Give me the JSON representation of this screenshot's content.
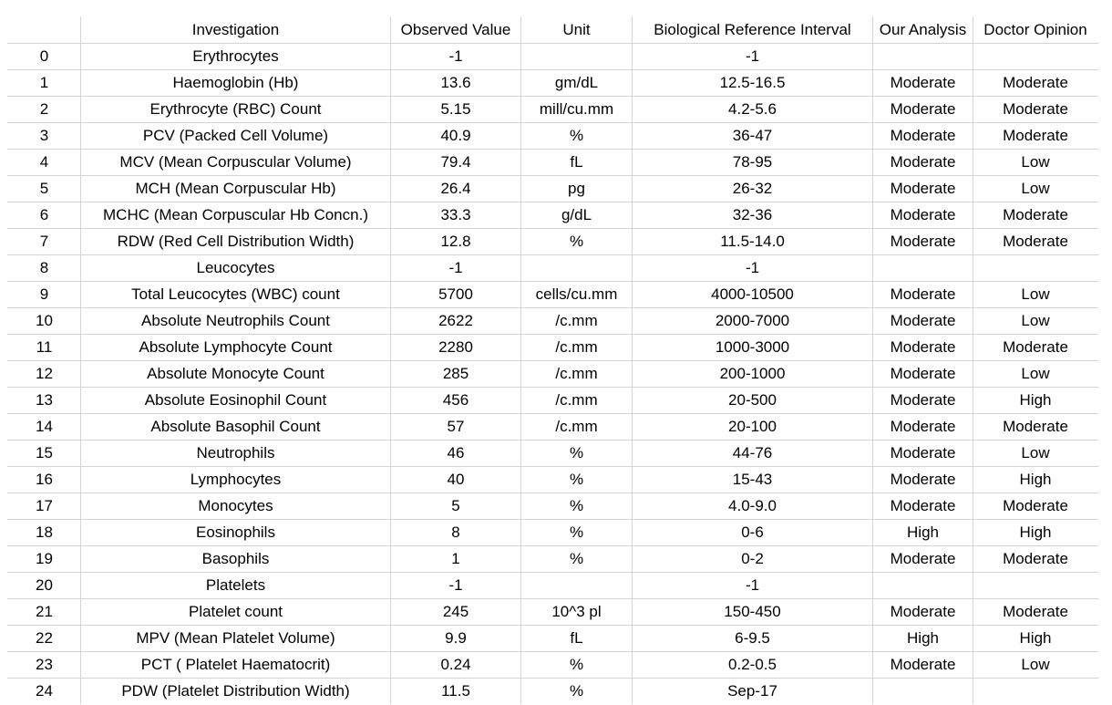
{
  "table": {
    "headers": [
      "",
      "Investigation",
      "Observed Value",
      "Unit",
      "Biological Reference Interval",
      "Our Analysis",
      "Doctor Opinion"
    ],
    "rows": [
      [
        "0",
        "Erythrocytes",
        "-1",
        "",
        "-1",
        "",
        ""
      ],
      [
        "1",
        "Haemoglobin (Hb)",
        "13.6",
        "gm/dL",
        "12.5-16.5",
        "Moderate",
        "Moderate"
      ],
      [
        "2",
        "Erythrocyte (RBC) Count",
        "5.15",
        "mill/cu.mm",
        "4.2-5.6",
        "Moderate",
        "Moderate"
      ],
      [
        "3",
        "PCV (Packed Cell Volume)",
        "40.9",
        "%",
        "36-47",
        "Moderate",
        "Moderate"
      ],
      [
        "4",
        "MCV (Mean Corpuscular Volume)",
        "79.4",
        "fL",
        "78-95",
        "Moderate",
        "Low"
      ],
      [
        "5",
        "MCH (Mean Corpuscular Hb)",
        "26.4",
        "pg",
        "26-32",
        "Moderate",
        "Low"
      ],
      [
        "6",
        "MCHC (Mean Corpuscular Hb Concn.)",
        "33.3",
        "g/dL",
        "32-36",
        "Moderate",
        "Moderate"
      ],
      [
        "7",
        "RDW (Red Cell Distribution Width)",
        "12.8",
        "%",
        "11.5-14.0",
        "Moderate",
        "Moderate"
      ],
      [
        "8",
        "Leucocytes",
        "-1",
        "",
        "-1",
        "",
        ""
      ],
      [
        "9",
        "Total Leucocytes (WBC) count",
        "5700",
        "cells/cu.mm",
        "4000-10500",
        "Moderate",
        "Low"
      ],
      [
        "10",
        "Absolute Neutrophils Count",
        "2622",
        "/c.mm",
        "2000-7000",
        "Moderate",
        "Low"
      ],
      [
        "11",
        "Absolute Lymphocyte Count",
        "2280",
        "/c.mm",
        "1000-3000",
        "Moderate",
        "Moderate"
      ],
      [
        "12",
        "Absolute Monocyte Count",
        "285",
        "/c.mm",
        "200-1000",
        "Moderate",
        "Low"
      ],
      [
        "13",
        "Absolute Eosinophil Count",
        "456",
        "/c.mm",
        "20-500",
        "Moderate",
        "High"
      ],
      [
        "14",
        "Absolute Basophil Count",
        "57",
        "/c.mm",
        "20-100",
        "Moderate",
        "Moderate"
      ],
      [
        "15",
        "Neutrophils",
        "46",
        "%",
        "44-76",
        "Moderate",
        "Low"
      ],
      [
        "16",
        "Lymphocytes",
        "40",
        "%",
        "15-43",
        "Moderate",
        "High"
      ],
      [
        "17",
        "Monocytes",
        "5",
        "%",
        "4.0-9.0",
        "Moderate",
        "Moderate"
      ],
      [
        "18",
        "Eosinophils",
        "8",
        "%",
        "0-6",
        "High",
        "High"
      ],
      [
        "19",
        "Basophils",
        "1",
        "%",
        "0-2",
        "Moderate",
        "Moderate"
      ],
      [
        "20",
        "Platelets",
        "-1",
        "",
        "-1",
        "",
        ""
      ],
      [
        "21",
        "Platelet count",
        "245",
        "10^3 pl",
        "150-450",
        "Moderate",
        "Moderate"
      ],
      [
        "22",
        "MPV (Mean Platelet Volume)",
        "9.9",
        "fL",
        "6-9.5",
        "High",
        "High"
      ],
      [
        "23",
        "PCT ( Platelet Haematocrit)",
        "0.24",
        "%",
        "0.2-0.5",
        "Moderate",
        "Low"
      ],
      [
        "24",
        "PDW (Platelet Distribution Width)",
        "11.5",
        "%",
        "Sep-17",
        "",
        ""
      ]
    ]
  }
}
